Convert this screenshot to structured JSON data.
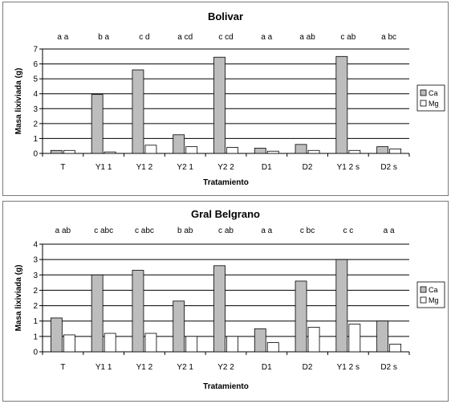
{
  "colors": {
    "ca": "#bdbdbd",
    "mg": "#ffffff",
    "stroke": "#000000",
    "grid": "#000000"
  },
  "chart_data": [
    {
      "type": "bar",
      "title": "Bolivar",
      "xlabel": "Tratamiento",
      "ylabel": "Masa lixiviada (g)",
      "ylim": [
        0,
        7
      ],
      "yticks": [
        "0",
        "1",
        "2",
        "3",
        "4",
        "5",
        "6",
        "7"
      ],
      "grid": true,
      "legend_position": "right",
      "categories": [
        "T",
        "Y1 1",
        "Y1 2",
        "Y2 1",
        "Y2 2",
        "D1",
        "D2",
        "Y1 2 s",
        "D2 s"
      ],
      "letters": [
        "a a",
        "b a",
        "c d",
        "a cd",
        "c cd",
        "a a",
        "a ab",
        "c ab",
        "a bc"
      ],
      "series": [
        {
          "name": "Ca",
          "values": [
            0.2,
            3.95,
            5.6,
            1.25,
            6.45,
            0.35,
            0.6,
            6.5,
            0.45
          ]
        },
        {
          "name": "Mg",
          "values": [
            0.2,
            0.1,
            0.55,
            0.45,
            0.4,
            0.15,
            0.2,
            0.2,
            0.3
          ]
        }
      ]
    },
    {
      "type": "bar",
      "title": "Gral Belgrano",
      "xlabel": "Tratamiento",
      "ylabel": "Masa lixiviada (g)",
      "ylim": [
        0,
        3.5
      ],
      "yticks": [
        "0",
        "1",
        "1",
        "2",
        "2",
        "3",
        "3",
        "4"
      ],
      "grid": true,
      "legend_position": "right",
      "categories": [
        "T",
        "Y1 1",
        "Y1 2",
        "Y2 1",
        "Y2 2",
        "D1",
        "D2",
        "Y1 2 s",
        "D2 s"
      ],
      "letters": [
        "a ab",
        "c abc",
        "c abc",
        "b ab",
        "c ab",
        "a a",
        "c bc",
        "c c",
        "a a"
      ],
      "series": [
        {
          "name": "Ca",
          "values": [
            1.1,
            2.5,
            2.65,
            1.65,
            2.8,
            0.75,
            2.3,
            3.0,
            1.0
          ]
        },
        {
          "name": "Mg",
          "values": [
            0.55,
            0.6,
            0.6,
            0.5,
            0.5,
            0.3,
            0.8,
            0.9,
            0.25
          ]
        }
      ]
    }
  ]
}
